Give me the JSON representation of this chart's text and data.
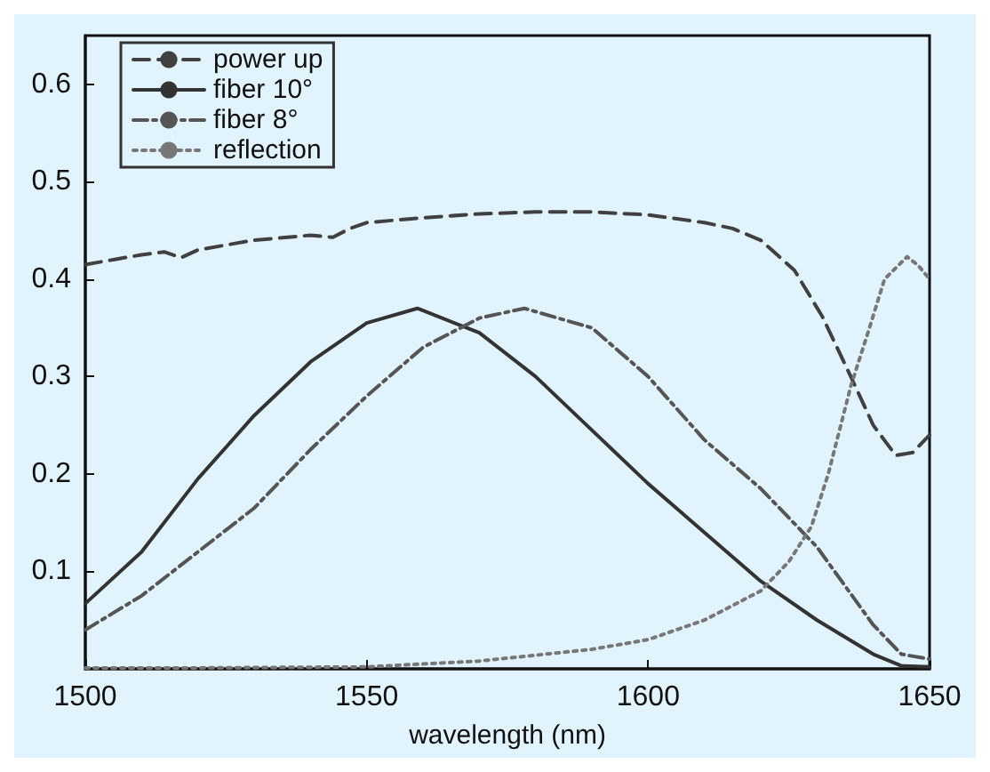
{
  "chart_data": {
    "type": "line",
    "xlabel": "wavelength (nm)",
    "xlim": [
      1500,
      1650
    ],
    "xticks": [
      1500,
      1550,
      1600,
      1650
    ],
    "ylim": [
      0,
      0.65
    ],
    "yticks": [
      0.1,
      0.2,
      0.3,
      0.4,
      0.5,
      0.6
    ],
    "grid": false,
    "legend": "top left",
    "marker": "none",
    "series": [
      {
        "name": "power up",
        "color": "#404040",
        "line_style": "dashed",
        "x": [
          1500,
          1505,
          1510,
          1514,
          1517,
          1520,
          1530,
          1540,
          1544,
          1547,
          1550,
          1560,
          1570,
          1580,
          1590,
          1600,
          1610,
          1615,
          1620,
          1626,
          1631,
          1636,
          1640,
          1644,
          1647,
          1650
        ],
        "values": [
          0.415,
          0.42,
          0.425,
          0.428,
          0.422,
          0.43,
          0.44,
          0.445,
          0.443,
          0.452,
          0.458,
          0.463,
          0.467,
          0.469,
          0.469,
          0.466,
          0.458,
          0.452,
          0.44,
          0.409,
          0.361,
          0.3,
          0.25,
          0.219,
          0.222,
          0.24
        ]
      },
      {
        "name": "fiber 10°",
        "color": "#333333",
        "line_style": "solid",
        "x": [
          1500,
          1510,
          1520,
          1530,
          1540,
          1550,
          1559,
          1570,
          1580,
          1590,
          1600,
          1610,
          1620,
          1630,
          1640,
          1645,
          1650
        ],
        "values": [
          0.067,
          0.12,
          0.195,
          0.26,
          0.315,
          0.355,
          0.37,
          0.345,
          0.3,
          0.245,
          0.19,
          0.14,
          0.09,
          0.05,
          0.015,
          0.003,
          0.002
        ]
      },
      {
        "name": "fiber 8°",
        "color": "#555555",
        "line_style": "dashdot",
        "x": [
          1500,
          1510,
          1520,
          1530,
          1540,
          1550,
          1560,
          1570,
          1578,
          1590,
          1600,
          1610,
          1620,
          1630,
          1640,
          1645,
          1650
        ],
        "values": [
          0.04,
          0.075,
          0.12,
          0.165,
          0.225,
          0.28,
          0.33,
          0.36,
          0.37,
          0.35,
          0.3,
          0.235,
          0.185,
          0.125,
          0.045,
          0.015,
          0.01
        ]
      },
      {
        "name": "reflection",
        "color": "#777777",
        "line_style": "dotted",
        "x": [
          1500,
          1520,
          1550,
          1570,
          1590,
          1600,
          1610,
          1620,
          1625,
          1629,
          1632,
          1636,
          1639,
          1642,
          1646,
          1648,
          1650
        ],
        "values": [
          0.001,
          0.001,
          0.002,
          0.008,
          0.02,
          0.03,
          0.05,
          0.08,
          0.11,
          0.146,
          0.2,
          0.29,
          0.344,
          0.4,
          0.423,
          0.414,
          0.4
        ]
      }
    ]
  }
}
